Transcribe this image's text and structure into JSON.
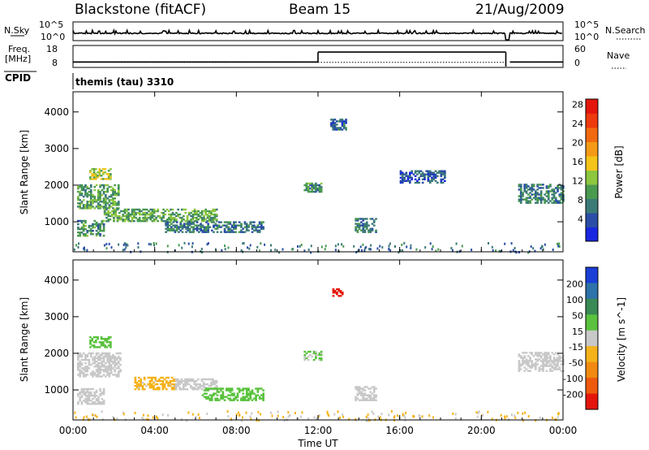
{
  "header": {
    "station": "Blackstone (fitACF)",
    "beam": "Beam 15",
    "date": "21/Aug/2009"
  },
  "strip_panels": {
    "nsky_label": "N.Sky",
    "nsky_ticks": [
      "10^5",
      "10^0"
    ],
    "nsearch_label": "N.Search",
    "nsearch_ticks": [
      "10^5",
      "10^0"
    ],
    "freq_label": "Freq.",
    "freq_unit": "[MHz]",
    "freq_ticks": [
      "18",
      "8"
    ],
    "nave_label": "Nave",
    "nave_ticks": [
      "60",
      "0"
    ],
    "cpid_label": "CPID",
    "cpid_value": "themis (tau) 3310"
  },
  "chart_data": [
    {
      "type": "heatmap",
      "title": "",
      "ylabel": "Slant Range [km]",
      "xlabel": "",
      "x_ticks": [
        "00:00",
        "04:00",
        "08:00",
        "12:00",
        "16:00",
        "20:00",
        "00:00"
      ],
      "y_ticks": [
        "1000",
        "2000",
        "3000",
        "4000"
      ],
      "xlim_hours": [
        0,
        24
      ],
      "ylim_km": [
        180,
        4550
      ],
      "colorbar": {
        "label": "Power [dB]",
        "ticks": [
          "4",
          "8",
          "12",
          "16",
          "20",
          "24",
          "28"
        ],
        "range": [
          0,
          30
        ],
        "colors": [
          "#1a27e0",
          "#2a4ea6",
          "#3c7a78",
          "#4a9a50",
          "#8dc63f",
          "#f5c419",
          "#f59a16",
          "#f26a10",
          "#ee3a0e",
          "#e4160c"
        ]
      },
      "echo_regions": [
        {
          "t0": 0.2,
          "t1": 2.2,
          "r0": 1350,
          "r1": 2000,
          "value": 10
        },
        {
          "t0": 0.8,
          "t1": 1.8,
          "r0": 2150,
          "r1": 2450,
          "value": 14
        },
        {
          "t0": 0.2,
          "t1": 1.5,
          "r0": 600,
          "r1": 1050,
          "value": 9
        },
        {
          "t0": 1.5,
          "t1": 7.0,
          "r0": 1000,
          "r1": 1350,
          "value": 11
        },
        {
          "t0": 4.5,
          "t1": 9.3,
          "r0": 700,
          "r1": 1000,
          "value": 7
        },
        {
          "t0": 11.3,
          "t1": 12.2,
          "r0": 1800,
          "r1": 2050,
          "value": 9
        },
        {
          "t0": 13.8,
          "t1": 14.8,
          "r0": 700,
          "r1": 1100,
          "value": 8
        },
        {
          "t0": 12.6,
          "t1": 13.4,
          "r0": 3500,
          "r1": 3800,
          "value": 6
        },
        {
          "t0": 21.8,
          "t1": 24.0,
          "r0": 1500,
          "r1": 2000,
          "value": 8
        },
        {
          "t0": 16.0,
          "t1": 18.2,
          "r0": 2050,
          "r1": 2400,
          "value": 5
        }
      ]
    },
    {
      "type": "heatmap",
      "title": "",
      "ylabel": "Slant Range [km]",
      "xlabel": "Time UT",
      "x_ticks": [
        "00:00",
        "04:00",
        "08:00",
        "12:00",
        "16:00",
        "20:00",
        "00:00"
      ],
      "y_ticks": [
        "1000",
        "2000",
        "3000",
        "4000"
      ],
      "xlim_hours": [
        0,
        24
      ],
      "ylim_km": [
        180,
        4550
      ],
      "colorbar": {
        "label": "Velocity [m s^-1]",
        "ticks": [
          "200",
          "100",
          "50",
          "15",
          "-15",
          "-50",
          "-100",
          "-200"
        ],
        "range": [
          -250,
          250
        ],
        "colors": [
          "#1a3fd6",
          "#2d72a8",
          "#3a8a55",
          "#5ac23e",
          "#c8c8c8",
          "#f5b21a",
          "#f28a12",
          "#ee5a0e",
          "#e4160c"
        ]
      },
      "echo_regions": [
        {
          "t0": 0.2,
          "t1": 2.3,
          "r0": 1350,
          "r1": 2000,
          "value": 0
        },
        {
          "t0": 0.8,
          "t1": 1.8,
          "r0": 2150,
          "r1": 2450,
          "value": 60
        },
        {
          "t0": 0.2,
          "t1": 1.5,
          "r0": 600,
          "r1": 1050,
          "value": 0
        },
        {
          "t0": 3.0,
          "t1": 5.0,
          "r0": 1000,
          "r1": 1350,
          "value": -40
        },
        {
          "t0": 5.0,
          "t1": 7.0,
          "r0": 1000,
          "r1": 1300,
          "value": 0
        },
        {
          "t0": 6.3,
          "t1": 9.3,
          "r0": 700,
          "r1": 1050,
          "value": 60
        },
        {
          "t0": 11.3,
          "t1": 12.2,
          "r0": 1800,
          "r1": 2050,
          "value": 30
        },
        {
          "t0": 13.8,
          "t1": 14.8,
          "r0": 700,
          "r1": 1100,
          "value": 0
        },
        {
          "t0": 12.7,
          "t1": 13.2,
          "r0": 3550,
          "r1": 3750,
          "value": -220
        },
        {
          "t0": 21.8,
          "t1": 24.0,
          "r0": 1500,
          "r1": 2000,
          "value": 0
        }
      ]
    }
  ],
  "nsky_series": {
    "base": 0.25,
    "drop_hours": [
      21.2,
      21.4
    ]
  },
  "freq_series": [
    {
      "t0": 0,
      "t1": 12.0,
      "value": 10.5
    },
    {
      "t0": 12.0,
      "t1": 21.2,
      "value": 15.0
    },
    {
      "t0": 21.4,
      "t1": 24,
      "value": 10.5
    }
  ],
  "nave_series": [
    {
      "t0": 0,
      "t1": 12.0,
      "value": 14
    },
    {
      "t0": 12.0,
      "t1": 21.2,
      "value": 14
    },
    {
      "t0": 21.4,
      "t1": 24,
      "value": 14
    }
  ]
}
